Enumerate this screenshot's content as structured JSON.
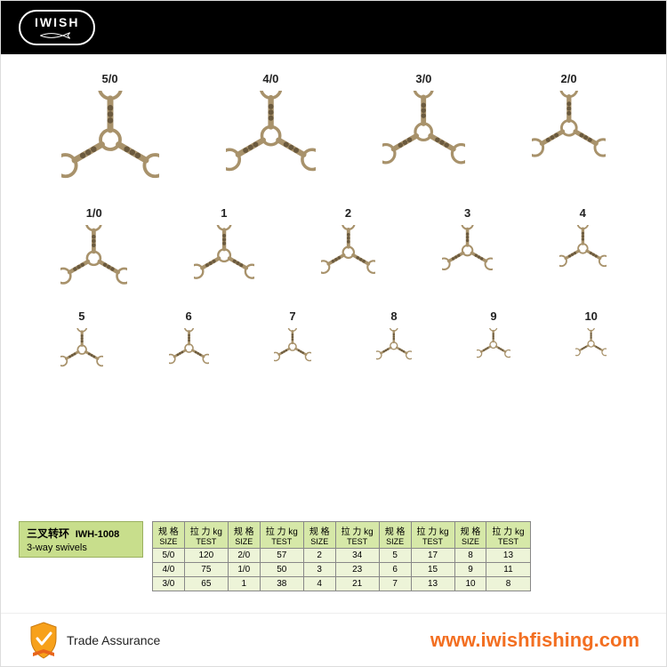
{
  "brand": "IWISH",
  "swivel_color": "#a8926b",
  "swivel_stroke": "#6b5a3e",
  "rows": [
    {
      "items": [
        {
          "label": "5/0",
          "scale": 1.0
        },
        {
          "label": "4/0",
          "scale": 0.92
        },
        {
          "label": "3/0",
          "scale": 0.84
        },
        {
          "label": "2/0",
          "scale": 0.76
        }
      ]
    },
    {
      "items": [
        {
          "label": "1/0",
          "scale": 0.68
        },
        {
          "label": "1",
          "scale": 0.62
        },
        {
          "label": "2",
          "scale": 0.56
        },
        {
          "label": "3",
          "scale": 0.52
        },
        {
          "label": "4",
          "scale": 0.48
        }
      ]
    },
    {
      "items": [
        {
          "label": "5",
          "scale": 0.44
        },
        {
          "label": "6",
          "scale": 0.41
        },
        {
          "label": "7",
          "scale": 0.38
        },
        {
          "label": "8",
          "scale": 0.36
        },
        {
          "label": "9",
          "scale": 0.34
        },
        {
          "label": "10",
          "scale": 0.32
        }
      ]
    }
  ],
  "product_title": {
    "cn": "三叉转环",
    "model": "IWH-1008",
    "en": "3-way swivels"
  },
  "table": {
    "header_bg": "#d6e8a8",
    "cell_bg": "#edf4d8",
    "border_color": "#888888",
    "col_header_cn1": "规 格",
    "col_header_en1": "SIZE",
    "col_header_cn2": "拉 力 kg",
    "col_header_en2": "TEST",
    "pairs": [
      [
        {
          "size": "5/0",
          "test": "120"
        },
        {
          "size": "2/0",
          "test": "57"
        },
        {
          "size": "2",
          "test": "34"
        },
        {
          "size": "5",
          "test": "17"
        },
        {
          "size": "8",
          "test": "13"
        }
      ],
      [
        {
          "size": "4/0",
          "test": "75"
        },
        {
          "size": "1/0",
          "test": "50"
        },
        {
          "size": "3",
          "test": "23"
        },
        {
          "size": "6",
          "test": "15"
        },
        {
          "size": "9",
          "test": "11"
        }
      ],
      [
        {
          "size": "3/0",
          "test": "65"
        },
        {
          "size": "1",
          "test": "38"
        },
        {
          "size": "4",
          "test": "21"
        },
        {
          "size": "7",
          "test": "13"
        },
        {
          "size": "10",
          "test": "8"
        }
      ]
    ]
  },
  "footer": {
    "assurance": "Trade Assurance",
    "url": "www.iwishfishing.com",
    "url_color": "#f36f21",
    "shield_colors": {
      "main": "#f7a11b",
      "ribbon": "#e8651b",
      "check": "#ffffff"
    }
  }
}
